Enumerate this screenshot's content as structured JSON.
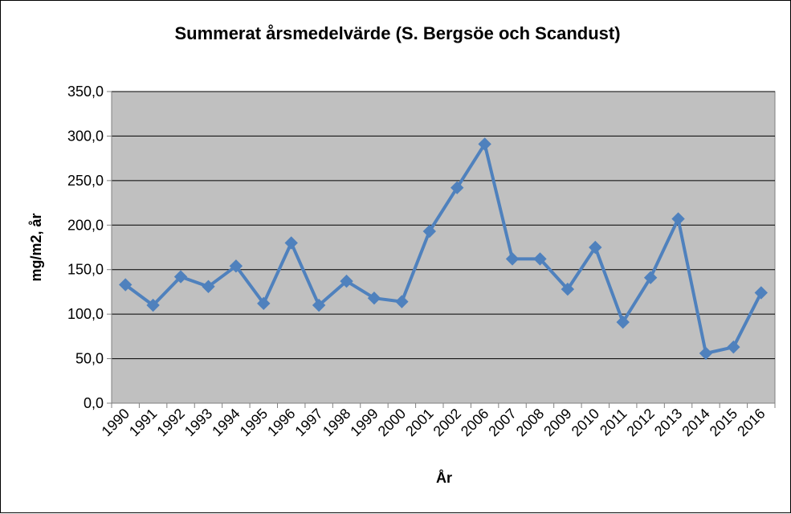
{
  "chart_data": {
    "type": "line",
    "title": "Summerat årsmedelvärde (S. Bergsöe och Scandust)",
    "xlabel": "År",
    "ylabel": "mg/m2, år",
    "categories": [
      "1990",
      "1991",
      "1992",
      "1993",
      "1994",
      "1995",
      "1996",
      "1997",
      "1998",
      "1999",
      "2000",
      "2001",
      "2002",
      "2006",
      "2007",
      "2008",
      "2009",
      "2010",
      "2011",
      "2012",
      "2013",
      "2014",
      "2015",
      "2016"
    ],
    "series": [
      {
        "values": [
          133,
          110,
          142,
          131,
          154,
          112,
          180,
          110,
          137,
          118,
          114,
          193,
          242,
          291,
          162,
          162,
          128,
          175,
          91,
          141,
          207,
          56,
          63,
          124
        ]
      }
    ],
    "ylim": [
      0,
      350
    ],
    "yticks": [
      0,
      50,
      100,
      150,
      200,
      250,
      300,
      350
    ],
    "ytick_labels": [
      "0,0",
      "50,0",
      "100,0",
      "150,0",
      "200,0",
      "250,0",
      "300,0",
      "350,0"
    ],
    "grid": "horizontal",
    "legend": "none",
    "colors": {
      "line": "#4F81BD",
      "plot_background": "#C0C0C0",
      "gridline": "#000000"
    },
    "marker": "diamond"
  }
}
